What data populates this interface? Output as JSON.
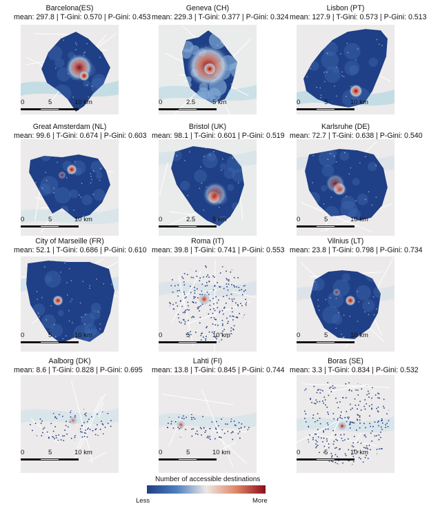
{
  "panels": [
    {
      "name": "Barcelona(ES)",
      "stats": "mean: 297.8 | T-Gini: 0.570 | P-Gini: 0.453",
      "scale": [
        "0",
        "5",
        "10 km"
      ],
      "shape": "barcelona",
      "land": "#eceaea",
      "water": "#aad3df"
    },
    {
      "name": "Geneva (CH)",
      "stats": "mean: 229.3 | T-Gini: 0.377 | P-Gini: 0.324",
      "scale": [
        "0",
        "2.5",
        "5 km"
      ],
      "shape": "geneva",
      "land": "#e9ecea",
      "water": "#b9d8e6"
    },
    {
      "name": "Lisbon (PT)",
      "stats": "mean: 127.9 | T-Gini: 0.573 | P-Gini: 0.513",
      "scale": [
        "0",
        "5",
        "10 km"
      ],
      "shape": "lisbon",
      "land": "#eceaea",
      "water": "#aad3df"
    },
    {
      "name": "Great Amsterdam (NL)",
      "stats": "mean: 99.6 | T-Gini: 0.674 | P-Gini: 0.603",
      "scale": [
        "0",
        "5",
        "10 km"
      ],
      "shape": "amsterdam",
      "land": "#eceaea",
      "water": "#cfe1ea"
    },
    {
      "name": "Bristol (UK)",
      "stats": "mean: 98.1 | T-Gini: 0.601 | P-Gini: 0.519",
      "scale": [
        "0",
        "2.5",
        "5 km"
      ],
      "shape": "bristol",
      "land": "#e9ecea",
      "water": "#cfe1ea"
    },
    {
      "name": "Karlsruhe (DE)",
      "stats": "mean: 72.7 | T-Gini: 0.638 | P-Gini: 0.540",
      "scale": [
        "0",
        "5",
        "10 km"
      ],
      "shape": "karlsruhe",
      "land": "#eceaea",
      "water": "#d3e0e8"
    },
    {
      "name": "City of Marseille (FR)",
      "stats": "mean: 52.1 | T-Gini: 0.686 | P-Gini: 0.610",
      "scale": [
        "0",
        "5",
        "10 km"
      ],
      "shape": "marseille",
      "land": "#eceaea",
      "water": "#c5dcea"
    },
    {
      "name": "Roma (IT)",
      "stats": "mean: 39.8 | T-Gini: 0.741 | P-Gini: 0.553",
      "scale": [
        "0",
        "5",
        "10 km"
      ],
      "shape": "roma",
      "land": "#eceaea",
      "water": "#d3e0e8"
    },
    {
      "name": "Vilnius (LT)",
      "stats": "mean: 23.8 | T-Gini: 0.798 | P-Gini: 0.734",
      "scale": [
        "0",
        "5",
        "10 km"
      ],
      "shape": "vilnius",
      "land": "#eceaea",
      "water": "#d3e0e8"
    },
    {
      "name": "Aalborg (DK)",
      "stats": "mean: 8.6 | T-Gini: 0.828 | P-Gini: 0.695",
      "scale": [
        "0",
        "5",
        "10 km"
      ],
      "shape": "aalborg",
      "land": "#eceaea",
      "water": "#cfe1ea"
    },
    {
      "name": "Lahti (FI)",
      "stats": "mean: 13.8 | T-Gini: 0.845 | P-Gini: 0.744",
      "scale": [
        "0",
        "5",
        "10 km"
      ],
      "shape": "lahti",
      "land": "#eceaea",
      "water": "#cfe1ea"
    },
    {
      "name": "Boras (SE)",
      "stats": "mean: 3.3 | T-Gini: 0.834 | P-Gini: 0.532",
      "scale": [
        "0",
        "5",
        "10 km"
      ],
      "shape": "boras",
      "land": "#eceaea",
      "water": "#cfe1ea"
    }
  ],
  "legend": {
    "title": "Number of accessible destinations",
    "low": "Less",
    "high": "More",
    "colors": [
      "#1f3f86",
      "#3f6db5",
      "#8fb4d8",
      "#e9e4e0",
      "#e7a07d",
      "#c54a36",
      "#8e0c1b"
    ]
  }
}
